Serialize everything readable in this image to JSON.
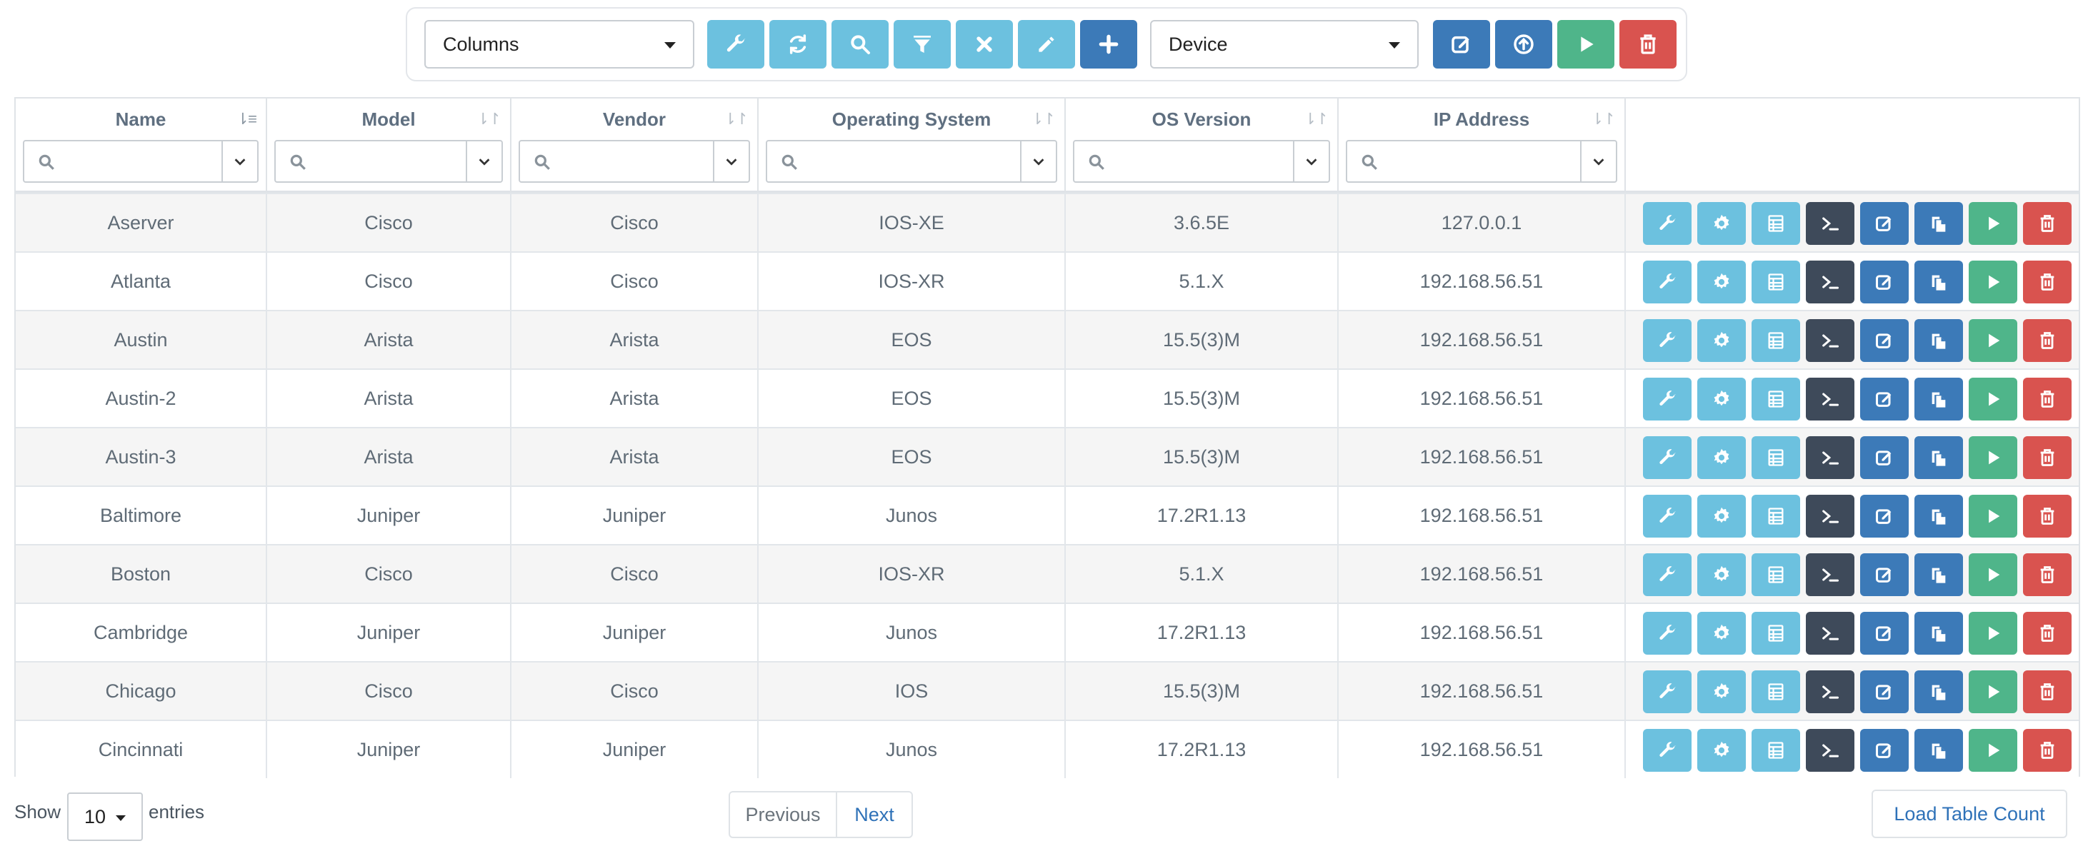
{
  "toolbar": {
    "columns_select": "Columns",
    "type_select": "Device",
    "buttons": [
      {
        "icon": "wrench-icon",
        "color": "#6cc1df"
      },
      {
        "icon": "refresh-icon",
        "color": "#6cc1df"
      },
      {
        "icon": "search-icon",
        "color": "#6cc1df"
      },
      {
        "icon": "filter-icon",
        "color": "#6cc1df"
      },
      {
        "icon": "clear-icon",
        "color": "#6cc1df"
      },
      {
        "icon": "pencil-icon",
        "color": "#6cc1df"
      },
      {
        "icon": "plus-icon",
        "color": "#3c7ab8"
      }
    ],
    "right_buttons": [
      {
        "icon": "edit-icon",
        "color": "#3c7ab8"
      },
      {
        "icon": "upload-icon",
        "color": "#3c7ab8"
      },
      {
        "icon": "play-icon",
        "color": "#4fb58a"
      },
      {
        "icon": "trash-icon",
        "color": "#d9534f"
      }
    ]
  },
  "table": {
    "columns": [
      "Name",
      "Model",
      "Vendor",
      "Operating System",
      "OS Version",
      "IP Address"
    ],
    "rows": [
      {
        "name": "Aserver",
        "model": "Cisco",
        "vendor": "Cisco",
        "os": "IOS-XE",
        "version": "3.6.5E",
        "ip": "127.0.0.1"
      },
      {
        "name": "Atlanta",
        "model": "Cisco",
        "vendor": "Cisco",
        "os": "IOS-XR",
        "version": "5.1.X",
        "ip": "192.168.56.51"
      },
      {
        "name": "Austin",
        "model": "Arista",
        "vendor": "Arista",
        "os": "EOS",
        "version": "15.5(3)M",
        "ip": "192.168.56.51"
      },
      {
        "name": "Austin-2",
        "model": "Arista",
        "vendor": "Arista",
        "os": "EOS",
        "version": "15.5(3)M",
        "ip": "192.168.56.51"
      },
      {
        "name": "Austin-3",
        "model": "Arista",
        "vendor": "Arista",
        "os": "EOS",
        "version": "15.5(3)M",
        "ip": "192.168.56.51"
      },
      {
        "name": "Baltimore",
        "model": "Juniper",
        "vendor": "Juniper",
        "os": "Junos",
        "version": "17.2R1.13",
        "ip": "192.168.56.51"
      },
      {
        "name": "Boston",
        "model": "Cisco",
        "vendor": "Cisco",
        "os": "IOS-XR",
        "version": "5.1.X",
        "ip": "192.168.56.51"
      },
      {
        "name": "Cambridge",
        "model": "Juniper",
        "vendor": "Juniper",
        "os": "Junos",
        "version": "17.2R1.13",
        "ip": "192.168.56.51"
      },
      {
        "name": "Chicago",
        "model": "Cisco",
        "vendor": "Cisco",
        "os": "IOS",
        "version": "15.5(3)M",
        "ip": "192.168.56.51"
      },
      {
        "name": "Cincinnati",
        "model": "Juniper",
        "vendor": "Juniper",
        "os": "Junos",
        "version": "17.2R1.13",
        "ip": "192.168.56.51"
      }
    ],
    "row_actions": [
      {
        "icon": "wrench-icon",
        "color": "#6cc1df"
      },
      {
        "icon": "gear-icon",
        "color": "#6cc1df"
      },
      {
        "icon": "table-icon",
        "color": "#6cc1df"
      },
      {
        "icon": "terminal-icon",
        "color": "#3e4a5a"
      },
      {
        "icon": "edit-icon",
        "color": "#3c7ab8"
      },
      {
        "icon": "copy-icon",
        "color": "#3c7ab8"
      },
      {
        "icon": "play-icon",
        "color": "#4fb58a"
      },
      {
        "icon": "trash-icon",
        "color": "#d9534f"
      }
    ]
  },
  "footer": {
    "show_label": "Show",
    "page_length": "10",
    "entries_label": "entries",
    "previous": "Previous",
    "next": "Next",
    "load_count": "Load Table Count"
  }
}
